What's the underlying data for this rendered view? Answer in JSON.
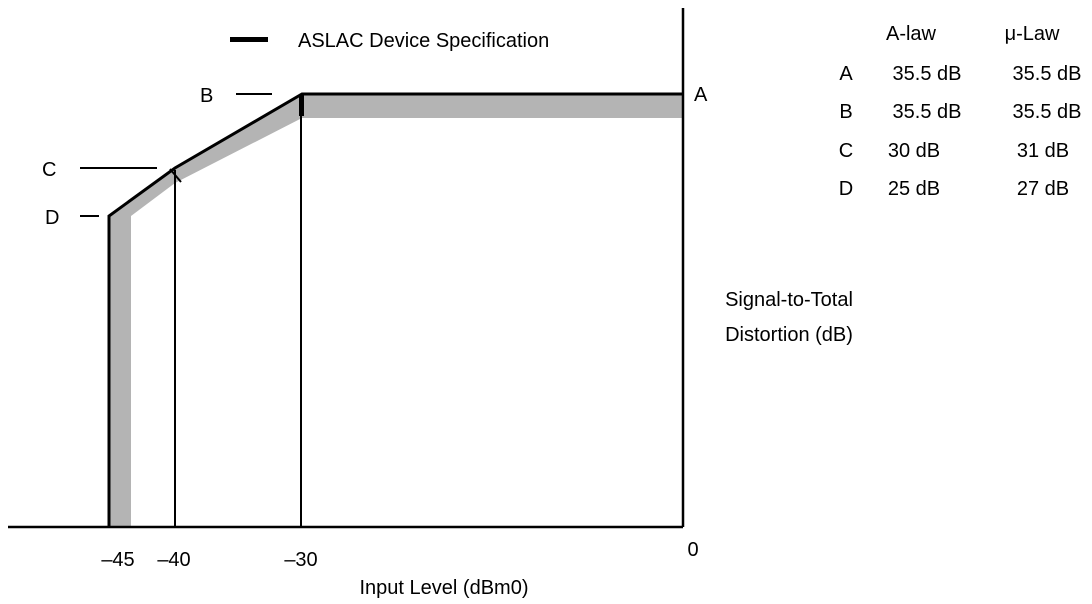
{
  "chart_data": {
    "type": "line",
    "legend": {
      "label": "ASLAC Device Specification",
      "placement": "top-center"
    },
    "x": [
      -45,
      -40,
      -30,
      0
    ],
    "x_ticks": [
      "–45",
      "–40",
      "–30",
      "0"
    ],
    "xlabel": "Input Level (dBm0)",
    "ylabel_lines": [
      "Signal-to-Total",
      "Distortion (dB)"
    ],
    "points": [
      "D",
      "C",
      "B",
      "A"
    ],
    "table": {
      "headers": [
        "A-law",
        "μ-Law"
      ],
      "rows": [
        {
          "point": "A",
          "a_law": "35.5 dB",
          "mu_law": "35.5 dB"
        },
        {
          "point": "B",
          "a_law": "35.5 dB",
          "mu_law": "35.5 dB"
        },
        {
          "point": "C",
          "a_law": "30 dB",
          "mu_law": "31 dB"
        },
        {
          "point": "D",
          "a_law": "25 dB",
          "mu_law": "27 dB"
        }
      ]
    },
    "spec_values_a_law": [
      25,
      30,
      35.5,
      35.5
    ],
    "spec_values_mu_law": [
      27,
      31,
      35.5,
      35.5
    ],
    "band_color": "#b4b4b4",
    "line_color": "#000000",
    "grid": false
  }
}
